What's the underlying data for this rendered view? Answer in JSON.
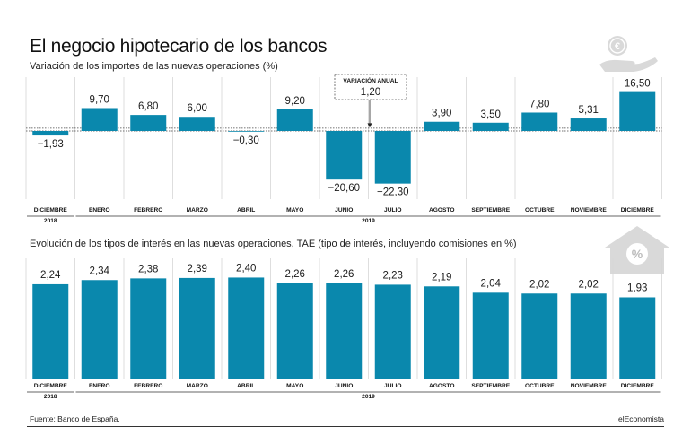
{
  "title": "El negocio hipotecario de los bancos",
  "source": "Fuente: Banco de España.",
  "brand": "elEconomista",
  "colors": {
    "bar": "#0a88ad",
    "grid": "#d6d6d6",
    "text": "#1a1a1a"
  },
  "icons": [
    "euro-hand-icon",
    "house-percent-icon"
  ],
  "chart_data": [
    {
      "type": "bar",
      "title": "Variación de los importes de las nuevas operaciones (%)",
      "categories": [
        "DICIEMBRE",
        "ENERO",
        "FEBRERO",
        "MARZO",
        "ABRIL",
        "MAYO",
        "JUNIO",
        "JULIO",
        "AGOSTO",
        "SEPTIEMBRE",
        "OCTUBRE",
        "NOVIEMBRE",
        "DICIEMBRE"
      ],
      "years": [
        {
          "label": "2018",
          "start": 0,
          "end": 0
        },
        {
          "label": "2019",
          "start": 1,
          "end": 12
        }
      ],
      "values": [
        -1.93,
        9.7,
        6.8,
        6.0,
        -0.3,
        9.2,
        -20.6,
        -22.3,
        3.9,
        3.5,
        7.8,
        5.31,
        16.5
      ],
      "labels": [
        "−1,93",
        "9,70",
        "6,80",
        "6,00",
        "−0,30",
        "9,20",
        "−20,60",
        "−22,30",
        "3,90",
        "3,50",
        "7,80",
        "5,31",
        "16,50"
      ],
      "annotation": {
        "title": "VARIACIÓN ANUAL",
        "value": 1.2,
        "label": "1,20"
      },
      "ylim": [
        -24,
        18
      ],
      "grid": true
    },
    {
      "type": "bar",
      "title": "Evolución de los tipos de interés en las nuevas operaciones, TAE (tipo de interés, incluyendo comisiones en %)",
      "categories": [
        "DICIEMBRE",
        "ENERO",
        "FEBRERO",
        "MARZO",
        "ABRIL",
        "MAYO",
        "JUNIO",
        "JULIO",
        "AGOSTO",
        "SEPTIEMBRE",
        "OCTUBRE",
        "NOVIEMBRE",
        "DICIEMBRE"
      ],
      "years": [
        {
          "label": "2018",
          "start": 0,
          "end": 0
        },
        {
          "label": "2019",
          "start": 1,
          "end": 12
        }
      ],
      "values": [
        2.24,
        2.34,
        2.38,
        2.39,
        2.4,
        2.26,
        2.26,
        2.23,
        2.19,
        2.04,
        2.02,
        2.02,
        1.93
      ],
      "labels": [
        "2,24",
        "2,34",
        "2,38",
        "2,39",
        "2,40",
        "2,26",
        "2,26",
        "2,23",
        "2,19",
        "2,04",
        "2,02",
        "2,02",
        "1,93"
      ],
      "ylim": [
        0,
        2.5
      ],
      "grid": true
    }
  ]
}
